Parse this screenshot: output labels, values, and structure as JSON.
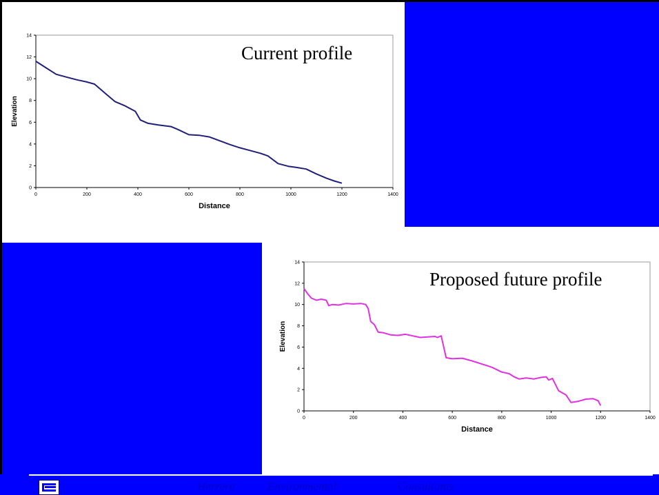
{
  "slide": {
    "caption_top": "Current profile",
    "caption_bottom": "Proposed future profile",
    "footer": {
      "word1": "Herrera",
      "word2": "Environmental",
      "word3": "Consultants"
    }
  },
  "colors": {
    "blue": "#0000ff",
    "current_line": "#1f1f7a",
    "future_line": "#e030e0"
  },
  "chart_data": [
    {
      "type": "line",
      "title": "",
      "xlabel": "Distance",
      "ylabel": "Elevation",
      "xlim": [
        0,
        1400
      ],
      "ylim": [
        0,
        14
      ],
      "xticks": [
        "0",
        "200",
        "400",
        "600",
        "800",
        "1000",
        "1200",
        "1400"
      ],
      "yticks": [
        "0",
        "2",
        "4",
        "6",
        "8",
        "10",
        "12",
        "14"
      ],
      "grid": false,
      "series": [
        {
          "x": [
            0,
            40,
            80,
            120,
            160,
            200,
            230,
            270,
            310,
            350,
            390,
            410,
            440,
            480,
            530,
            560,
            600,
            640,
            680,
            720,
            760,
            800,
            840,
            880,
            910,
            950,
            990,
            1020,
            1060,
            1100,
            1140,
            1170,
            1200
          ],
          "y": [
            11.6,
            11.0,
            10.4,
            10.15,
            9.9,
            9.7,
            9.5,
            8.7,
            7.9,
            7.5,
            7.0,
            6.2,
            5.9,
            5.75,
            5.6,
            5.3,
            4.85,
            4.8,
            4.65,
            4.3,
            3.95,
            3.65,
            3.4,
            3.15,
            2.9,
            2.2,
            1.95,
            1.85,
            1.7,
            1.25,
            0.85,
            0.6,
            0.4
          ]
        }
      ]
    },
    {
      "type": "line",
      "title": "",
      "xlabel": "Distance",
      "ylabel": "Elevation",
      "xlim": [
        0,
        1400
      ],
      "ylim": [
        0,
        14
      ],
      "xticks": [
        "0",
        "200",
        "400",
        "600",
        "800",
        "1000",
        "1200",
        "1400"
      ],
      "yticks": [
        "0",
        "2",
        "4",
        "6",
        "8",
        "10",
        "12",
        "14"
      ],
      "grid": false,
      "series": [
        {
          "x": [
            0,
            15,
            30,
            50,
            70,
            90,
            100,
            115,
            140,
            170,
            200,
            230,
            250,
            260,
            270,
            285,
            300,
            320,
            350,
            380,
            410,
            440,
            470,
            500,
            530,
            540,
            555,
            575,
            600,
            640,
            680,
            720,
            760,
            800,
            830,
            850,
            870,
            900,
            930,
            960,
            980,
            990,
            1005,
            1030,
            1060,
            1080,
            1110,
            1140,
            1170,
            1190,
            1200
          ],
          "y": [
            11.5,
            11.0,
            10.6,
            10.4,
            10.5,
            10.4,
            9.9,
            10.0,
            9.95,
            10.1,
            10.05,
            10.1,
            10.0,
            9.6,
            8.4,
            8.1,
            7.4,
            7.35,
            7.15,
            7.1,
            7.2,
            7.05,
            6.9,
            6.95,
            7.0,
            6.9,
            7.05,
            5.0,
            4.9,
            4.95,
            4.7,
            4.4,
            4.1,
            3.65,
            3.5,
            3.2,
            3.0,
            3.1,
            3.0,
            3.15,
            3.2,
            2.9,
            3.05,
            1.9,
            1.5,
            0.8,
            0.9,
            1.1,
            1.15,
            0.95,
            0.5
          ]
        }
      ]
    }
  ]
}
